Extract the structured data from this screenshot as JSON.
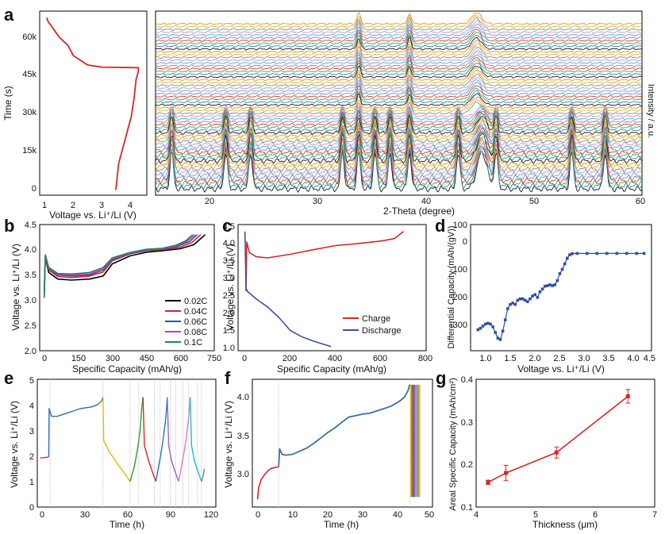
{
  "panels": {
    "a_left": {
      "letter": "a",
      "xlabel": "Voltage vs. Li⁺/Li (V)",
      "ylabel": "Time (s)",
      "xticks": [
        "1",
        "2",
        "3",
        "4"
      ],
      "yticks": [
        "0",
        "15k",
        "30k",
        "45k",
        "60k"
      ]
    },
    "a_right": {
      "xlabel": "2-Theta (degree)",
      "ylabel": "Intensity / a.u.",
      "xticks": [
        "20",
        "30",
        "40",
        "50",
        "60"
      ]
    },
    "b": {
      "letter": "b",
      "xlabel": "Specific Capacity (mAh/g)",
      "ylabel": "Voltage vs. Li⁺/Li (V)",
      "xticks": [
        "0",
        "150",
        "300",
        "450",
        "600",
        "750"
      ],
      "yticks": [
        "2.0",
        "2.5",
        "3.0",
        "3.5",
        "4.0",
        "4.5"
      ],
      "legend": [
        "0.02C",
        "0.04C",
        "0.06C",
        "0.08C",
        "0.1C"
      ]
    },
    "c": {
      "letter": "c",
      "xlabel": "Specific Capacity (mAh/g)",
      "ylabel": "Voltage vs. Li⁺/Li (V)",
      "xticks": [
        "0",
        "200",
        "400",
        "600",
        "800"
      ],
      "yticks": [
        "1.0",
        "1.5",
        "2.0",
        "2.5",
        "3.0",
        "3.5",
        "4.0",
        "4.5"
      ],
      "legend": [
        "Charge",
        "Discharge"
      ]
    },
    "d": {
      "letter": "d",
      "xlabel": "Voltage vs. Li⁺/Li (V)",
      "ylabel": "Differential Capacity (mAh/(gV))",
      "xticks": [
        "1.0",
        "1.5",
        "2.0",
        "2.5",
        "3.0",
        "3.5",
        "4.0",
        "4.5"
      ],
      "yticks": [
        "-300",
        "-200",
        "-100",
        "0",
        "100"
      ]
    },
    "e": {
      "letter": "e",
      "xlabel": "Time (h)",
      "ylabel": "Voltage vs. Li⁺/Li (V)",
      "xticks": [
        "0",
        "30",
        "60",
        "90",
        "120"
      ],
      "yticks": [
        "0",
        "1",
        "2",
        "3",
        "4",
        "5"
      ]
    },
    "f": {
      "letter": "f",
      "xlabel": "Time (h)",
      "ylabel": "Voltage vs. Li⁺/Li (V)",
      "xticks": [
        "0",
        "10",
        "20",
        "30",
        "40",
        "50"
      ],
      "yticks": [
        "3.0",
        "3.5",
        "4.0"
      ]
    },
    "g": {
      "letter": "g",
      "xlabel": "Thickness (μm)",
      "ylabel": "Areal Specific Capacity (mAh/cm²)",
      "xticks": [
        "4",
        "5",
        "6",
        "7"
      ],
      "yticks": [
        "0.1",
        "0.2",
        "0.3",
        "0.4"
      ]
    }
  },
  "colors": {
    "charge_red": "#d62728",
    "discharge_blue": "#3b4fa0",
    "dq_blue": "#2f4ea8",
    "b_series": [
      "#000000",
      "#d62728",
      "#2f4ea8",
      "#c040c0",
      "#1a8a55"
    ],
    "xrd_palette": [
      "#000000",
      "#1f77b4",
      "#2ca02c",
      "#d62728",
      "#9467bd",
      "#17becf",
      "#e377c2",
      "#7f7f7f",
      "#bcbd22",
      "#ff7f0e"
    ]
  },
  "chart_data": [
    {
      "id": "a_left",
      "type": "line",
      "xlim": [
        0.8,
        4.6
      ],
      "ylim": [
        -2000,
        68000
      ],
      "series": [
        {
          "x": [
            3.5,
            3.55,
            3.6,
            3.75,
            3.9,
            4.05,
            4.15,
            4.22,
            4.3,
            4.3,
            3.0,
            2.5,
            2.0,
            1.8,
            1.5,
            1.3,
            1.1,
            1.05
          ],
          "y": [
            0,
            5000,
            10000,
            16000,
            22000,
            28000,
            35000,
            42000,
            45000,
            46500,
            46700,
            47500,
            51000,
            55000,
            58000,
            61000,
            64000,
            65500
          ]
        }
      ]
    },
    {
      "id": "a_right",
      "type": "line",
      "xlim": [
        15,
        60
      ],
      "n_patterns": 60,
      "peaks_initial": [
        16.5,
        21.5,
        23.8,
        32.3,
        33.8,
        35.3,
        36.7,
        38.5,
        43.0,
        45.2,
        46.5,
        53.5,
        56.6
      ],
      "peaks_final": [
        33.8,
        38.5,
        44.7
      ]
    },
    {
      "id": "b",
      "type": "line",
      "xlim": [
        -20,
        750
      ],
      "ylim": [
        2.0,
        4.5
      ],
      "series": [
        {
          "name": "0.02C",
          "x": [
            0,
            5,
            20,
            60,
            120,
            200,
            260,
            300,
            380,
            450,
            520,
            600,
            660,
            710
          ],
          "y": [
            3.05,
            3.85,
            3.55,
            3.42,
            3.4,
            3.42,
            3.48,
            3.72,
            3.88,
            3.95,
            3.98,
            4.02,
            4.1,
            4.3
          ]
        },
        {
          "name": "0.04C",
          "x": [
            0,
            5,
            20,
            60,
            120,
            200,
            260,
            300,
            380,
            450,
            520,
            600,
            650,
            690
          ],
          "y": [
            3.1,
            3.85,
            3.6,
            3.47,
            3.45,
            3.48,
            3.56,
            3.78,
            3.92,
            3.98,
            4.0,
            4.05,
            4.14,
            4.3
          ]
        },
        {
          "name": "0.06C",
          "x": [
            0,
            5,
            20,
            60,
            120,
            200,
            260,
            300,
            380,
            450,
            520,
            590,
            640,
            675
          ],
          "y": [
            3.15,
            3.87,
            3.62,
            3.5,
            3.48,
            3.5,
            3.6,
            3.8,
            3.93,
            3.99,
            4.01,
            4.07,
            4.16,
            4.3
          ]
        },
        {
          "name": "0.08C",
          "x": [
            0,
            5,
            20,
            60,
            120,
            200,
            260,
            300,
            380,
            450,
            520,
            585,
            630,
            665
          ],
          "y": [
            3.18,
            3.88,
            3.63,
            3.52,
            3.5,
            3.52,
            3.62,
            3.82,
            3.94,
            4.0,
            4.02,
            4.08,
            4.17,
            4.3
          ]
        },
        {
          "name": "0.1C",
          "x": [
            0,
            5,
            20,
            60,
            120,
            200,
            260,
            300,
            380,
            450,
            520,
            580,
            625,
            655
          ],
          "y": [
            3.05,
            3.9,
            3.65,
            3.53,
            3.52,
            3.55,
            3.65,
            3.84,
            3.95,
            4.01,
            4.03,
            4.09,
            4.18,
            4.3
          ]
        }
      ]
    },
    {
      "id": "c",
      "type": "line",
      "xlim": [
        -30,
        800
      ],
      "ylim": [
        0.9,
        4.5
      ],
      "series": [
        {
          "name": "Charge",
          "x": [
            5,
            8,
            20,
            50,
            100,
            200,
            300,
            400,
            500,
            600,
            660,
            700
          ],
          "y": [
            2.6,
            4.0,
            3.7,
            3.58,
            3.55,
            3.65,
            3.78,
            3.9,
            3.96,
            4.03,
            4.1,
            4.3
          ]
        },
        {
          "name": "Discharge",
          "x": [
            0,
            3,
            5,
            10,
            50,
            100,
            150,
            200,
            250,
            300,
            350,
            380
          ],
          "y": [
            4.3,
            3.5,
            2.7,
            2.6,
            2.38,
            2.15,
            1.85,
            1.48,
            1.3,
            1.18,
            1.08,
            1.02
          ]
        }
      ]
    },
    {
      "id": "d",
      "type": "scatter",
      "xlim": [
        0.85,
        4.5
      ],
      "ylim": [
        -350,
        100
      ],
      "series": [
        {
          "x": [
            1.0,
            1.05,
            1.1,
            1.15,
            1.2,
            1.25,
            1.3,
            1.35,
            1.4,
            1.45,
            1.5,
            1.55,
            1.6,
            1.65,
            1.7,
            1.75,
            1.8,
            1.85,
            1.9,
            1.95,
            2.0,
            2.05,
            2.1,
            2.15,
            2.2,
            2.25,
            2.3,
            2.35,
            2.4,
            2.45,
            2.5,
            2.55,
            2.6,
            2.65,
            2.7,
            2.75,
            2.8,
            2.85,
            2.9,
            3.0,
            3.2,
            3.4,
            3.6,
            3.8,
            4.0,
            4.2,
            4.35
          ],
          "y": [
            -275,
            -270,
            -262,
            -255,
            -252,
            -255,
            -265,
            -285,
            -305,
            -310,
            -280,
            -240,
            -200,
            -185,
            -180,
            -185,
            -170,
            -165,
            -165,
            -170,
            -175,
            -165,
            -155,
            -150,
            -160,
            -140,
            -130,
            -120,
            -118,
            -115,
            -118,
            -115,
            -100,
            -75,
            -60,
            -40,
            -20,
            -8,
            -4,
            -3,
            -3,
            -3,
            -3,
            -3,
            -3,
            -3,
            -3
          ]
        }
      ]
    },
    {
      "id": "e",
      "type": "line",
      "xlim": [
        -2,
        123
      ],
      "ylim": [
        0,
        5
      ],
      "vlines": [
        7,
        44,
        63,
        69,
        80,
        84,
        91,
        95,
        100,
        104,
        110,
        113
      ],
      "series": [
        {
          "x": [
            0,
            2,
            5,
            6
          ],
          "y": [
            1.92,
            1.93,
            1.95,
            1.96
          ]
        },
        {
          "x": [
            6,
            6.3,
            8,
            12,
            20,
            28,
            36,
            40,
            43,
            44
          ],
          "y": [
            1.96,
            3.85,
            3.55,
            3.55,
            3.7,
            3.85,
            3.92,
            4.0,
            4.15,
            4.3
          ]
        },
        {
          "x": [
            44,
            44.5,
            48,
            54,
            60,
            63
          ],
          "y": [
            4.3,
            2.6,
            2.2,
            1.7,
            1.25,
            1.0
          ]
        },
        {
          "x": [
            63,
            64,
            66,
            68,
            70,
            71,
            72
          ],
          "y": [
            1.0,
            1.2,
            1.6,
            2.2,
            3.0,
            3.8,
            4.3
          ]
        },
        {
          "x": [
            72,
            73,
            76,
            79,
            81
          ],
          "y": [
            4.3,
            2.4,
            1.8,
            1.3,
            1.0
          ]
        },
        {
          "x": [
            81,
            82,
            84,
            86,
            88,
            89
          ],
          "y": [
            1.0,
            1.3,
            1.9,
            2.6,
            3.5,
            4.3
          ]
        },
        {
          "x": [
            89,
            90,
            92,
            95,
            97
          ],
          "y": [
            4.3,
            2.4,
            1.8,
            1.3,
            1.0
          ]
        },
        {
          "x": [
            97,
            98,
            100,
            102,
            104,
            105
          ],
          "y": [
            1.0,
            1.3,
            1.9,
            2.6,
            3.5,
            4.3
          ]
        },
        {
          "x": [
            105,
            106,
            108,
            111,
            113
          ],
          "y": [
            4.3,
            2.4,
            1.8,
            1.3,
            1.0
          ]
        },
        {
          "x": [
            113,
            114,
            115
          ],
          "y": [
            1.0,
            1.2,
            1.5
          ]
        }
      ]
    },
    {
      "id": "f",
      "type": "line",
      "xlim": [
        -1.5,
        50
      ],
      "ylim": [
        2.7,
        4.35
      ],
      "vlines": [
        6,
        43.5
      ],
      "series": [
        {
          "x": [
            0,
            0.3,
            1,
            2,
            3,
            4,
            5,
            6
          ],
          "y": [
            2.8,
            2.95,
            3.05,
            3.12,
            3.17,
            3.2,
            3.21,
            3.22
          ]
        },
        {
          "x": [
            6,
            6.3,
            7,
            8,
            10,
            12,
            14,
            16,
            18,
            20,
            22,
            24,
            26,
            28,
            30,
            32,
            34,
            36,
            38,
            40,
            41,
            42,
            43,
            43.5
          ],
          "y": [
            3.22,
            3.45,
            3.38,
            3.37,
            3.38,
            3.42,
            3.46,
            3.52,
            3.59,
            3.66,
            3.72,
            3.79,
            3.86,
            3.88,
            3.9,
            3.91,
            3.94,
            3.97,
            4.0,
            4.05,
            4.08,
            4.12,
            4.2,
            4.28
          ]
        }
      ]
    },
    {
      "id": "g",
      "type": "line",
      "xlim": [
        4,
        7
      ],
      "ylim": [
        0.1,
        0.4
      ],
      "series": [
        {
          "x": [
            4.2,
            4.5,
            5.35,
            6.55
          ],
          "y": [
            0.158,
            0.18,
            0.228,
            0.36
          ],
          "yerr": [
            0.005,
            0.018,
            0.013,
            0.016
          ]
        }
      ]
    }
  ]
}
